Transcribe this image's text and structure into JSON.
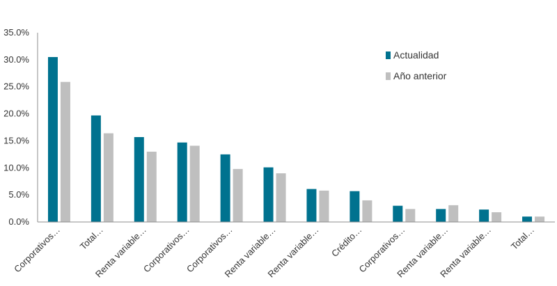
{
  "chart_data": {
    "type": "bar",
    "categories": [
      "Corporativos…",
      "Total…",
      "Renta variable…",
      "Corporativos…",
      "Corporativos…",
      "Renta variable…",
      "Renta variable…",
      "Crédito…",
      "Corporativos…",
      "Renta variable…",
      "Renta variable…",
      "Total…"
    ],
    "series": [
      {
        "name": "Actualidad",
        "color": "#00728f",
        "values": [
          30.5,
          19.7,
          15.7,
          14.7,
          12.5,
          10.1,
          6.1,
          5.7,
          3.0,
          2.4,
          2.3,
          1.0
        ]
      },
      {
        "name": "Año anterior",
        "color": "#bfbfbf",
        "values": [
          25.9,
          16.4,
          13.0,
          14.1,
          9.8,
          9.0,
          5.8,
          4.0,
          2.4,
          3.1,
          1.8,
          1.0
        ]
      }
    ],
    "yticks": [
      "0.0%",
      "5.0%",
      "10.0%",
      "15.0%",
      "20.0%",
      "25.0%",
      "30.0%",
      "35.0%"
    ],
    "ylim": [
      0,
      35
    ],
    "legend_position": "top-right",
    "grid": false
  }
}
